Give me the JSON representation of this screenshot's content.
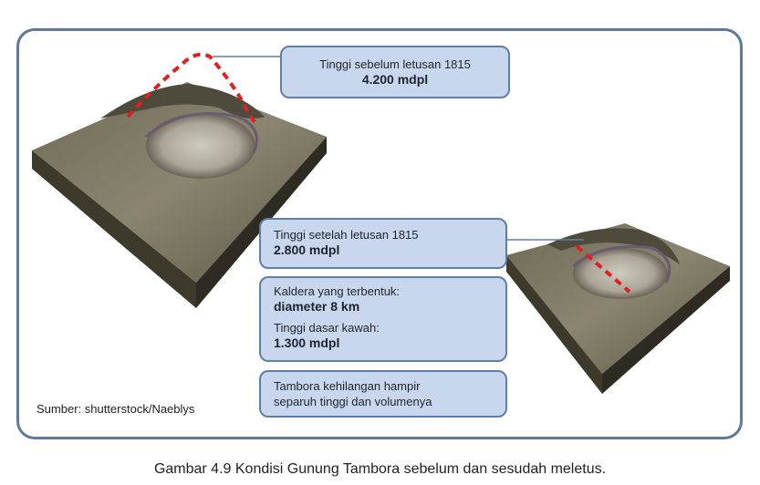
{
  "callouts": {
    "before": {
      "label": "Tinggi sebelum letusan 1815",
      "value": "4.200 mdpl"
    },
    "after": {
      "label": "Tinggi setelah letusan 1815",
      "value": "2.800 mdpl"
    },
    "caldera": {
      "label": "Kaldera yang terbentuk:",
      "value": "diameter 8 km",
      "floor_label": "Tinggi dasar kawah:",
      "floor_value": "1.300 mdpl"
    },
    "loss": {
      "line1": "Tambora kehilangan hampir",
      "line2": "separuh tinggi dan volumenya"
    }
  },
  "source": "Sumber: shutterstock/Naeblys",
  "caption": "Gambar 4.9 Kondisi Gunung Tambora sebelum dan sesudah meletus.",
  "colors": {
    "frame": "#5d7a9c",
    "callout_fill": "#c9d7ee",
    "callout_border": "#5f7ea6",
    "dashed_outline": "#e02020"
  }
}
